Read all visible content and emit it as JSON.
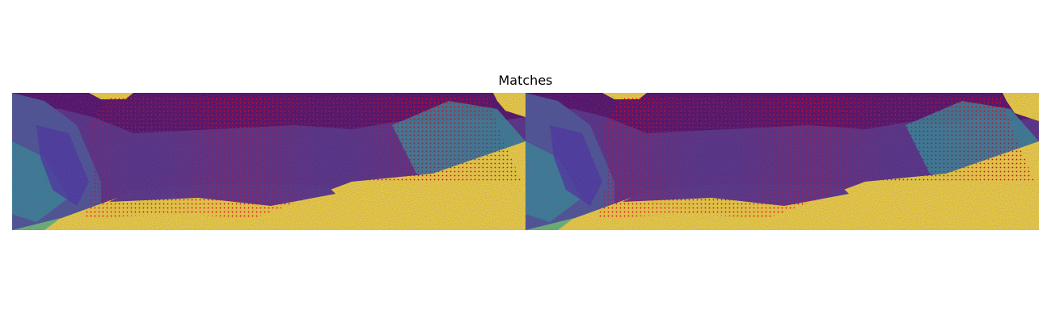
{
  "figure": {
    "title": "Matches"
  },
  "image": {
    "panels": [
      "left-view",
      "right-view"
    ],
    "colormap": "viridis",
    "match_marker_color": "#e8001c",
    "colors": {
      "dark": "#440154",
      "purple": "#482878",
      "blue": "#3b528b",
      "teal": "#21918c",
      "green": "#5ec962",
      "yellow": "#fde725"
    }
  }
}
